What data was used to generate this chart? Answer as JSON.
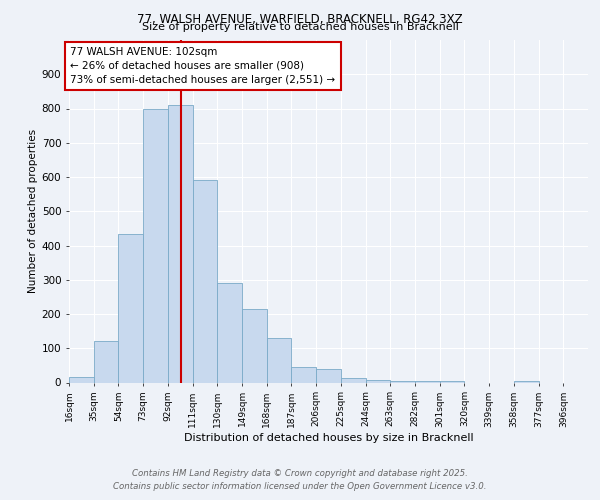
{
  "title_line1": "77, WALSH AVENUE, WARFIELD, BRACKNELL, RG42 3XZ",
  "title_line2": "Size of property relative to detached houses in Bracknell",
  "xlabel": "Distribution of detached houses by size in Bracknell",
  "ylabel": "Number of detached properties",
  "bin_labels": [
    "16sqm",
    "35sqm",
    "54sqm",
    "73sqm",
    "92sqm",
    "111sqm",
    "130sqm",
    "149sqm",
    "168sqm",
    "187sqm",
    "206sqm",
    "225sqm",
    "244sqm",
    "263sqm",
    "282sqm",
    "301sqm",
    "320sqm",
    "339sqm",
    "358sqm",
    "377sqm",
    "396sqm"
  ],
  "bin_edges": [
    16,
    35,
    54,
    73,
    92,
    111,
    130,
    149,
    168,
    187,
    206,
    225,
    244,
    263,
    282,
    301,
    320,
    339,
    358,
    377,
    396
  ],
  "bar_heights": [
    15,
    120,
    435,
    800,
    810,
    590,
    290,
    215,
    130,
    45,
    40,
    12,
    8,
    5,
    5,
    5,
    0,
    0,
    5,
    0
  ],
  "bar_color": "#c8d9ee",
  "bar_edge_color": "#7aaac8",
  "vline_x": 102,
  "vline_color": "#cc0000",
  "annotation_text": "77 WALSH AVENUE: 102sqm\n← 26% of detached houses are smaller (908)\n73% of semi-detached houses are larger (2,551) →",
  "annotation_box_color": "#ffffff",
  "annotation_box_edge_color": "#cc0000",
  "ylim": [
    0,
    1000
  ],
  "yticks": [
    0,
    100,
    200,
    300,
    400,
    500,
    600,
    700,
    800,
    900,
    1000
  ],
  "footer_line1": "Contains HM Land Registry data © Crown copyright and database right 2025.",
  "footer_line2": "Contains public sector information licensed under the Open Government Licence v3.0.",
  "bg_color": "#eef2f8",
  "plot_bg_color": "#eef2f8",
  "grid_color": "#ffffff"
}
